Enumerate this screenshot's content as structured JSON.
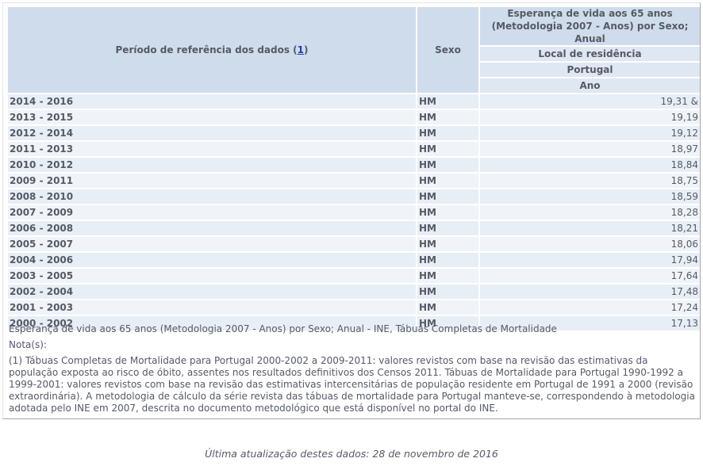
{
  "table": {
    "header": {
      "period_label": "Período de referência dos dados (",
      "period_note_ref": "1",
      "period_label_close": ")",
      "sexo_label": "Sexo",
      "indicator_line1": "Esperança de vida aos 65 anos",
      "indicator_line2": "(Metodologia 2007 - Anos) por Sexo; Anual",
      "local_label": "Local de residência",
      "local_value": "Portugal",
      "ano_label": "Ano"
    },
    "rows": [
      {
        "period": "2014 - 2016",
        "sexo": "HM",
        "value": "19,31 &"
      },
      {
        "period": "2013 - 2015",
        "sexo": "HM",
        "value": "19,19"
      },
      {
        "period": "2012 - 2014",
        "sexo": "HM",
        "value": "19,12"
      },
      {
        "period": "2011 - 2013",
        "sexo": "HM",
        "value": "18,97"
      },
      {
        "period": "2010 - 2012",
        "sexo": "HM",
        "value": "18,84"
      },
      {
        "period": "2009 - 2011",
        "sexo": "HM",
        "value": "18,75"
      },
      {
        "period": "2008 - 2010",
        "sexo": "HM",
        "value": "18,59"
      },
      {
        "period": "2007 - 2009",
        "sexo": "HM",
        "value": "18,28"
      },
      {
        "period": "2006 - 2008",
        "sexo": "HM",
        "value": "18,21"
      },
      {
        "period": "2005 - 2007",
        "sexo": "HM",
        "value": "18,06"
      },
      {
        "period": "2004 - 2006",
        "sexo": "HM",
        "value": "17,94"
      },
      {
        "period": "2003 - 2005",
        "sexo": "HM",
        "value": "17,64"
      },
      {
        "period": "2002 - 2004",
        "sexo": "HM",
        "value": "17,48"
      },
      {
        "period": "2001 - 2003",
        "sexo": "HM",
        "value": "17,24"
      },
      {
        "period": "2000 - 2002",
        "sexo": "HM",
        "value": "17,13"
      }
    ]
  },
  "source": "Esperança de vida aos 65 anos (Metodologia 2007 - Anos) por Sexo; Anual - INE, Tábuas Completas de Mortalidade",
  "notes": {
    "title": "Nota(s):",
    "text": "(1) Tábuas Completas de Mortalidade para Portugal 2000-2002 a 2009-2011: valores revistos com base na revisão das estimativas da população exposta ao risco de óbito, assentes nos resultados definitivos dos Censos 2011. Tábuas de Mortalidade para Portugal 1990-1992 a 1999-2001: valores revistos com base na revisão das estimativas intercensitárias de população residente em Portugal de 1991 a 2000 (revisão extraordinária). A metodologia de cálculo da série revista das tábuas de mortalidade para Portugal manteve-se, correspondendo à metodologia adotada pelo INE em 2007, descrita no documento metodológico que está disponível no portal do INE."
  },
  "footer": {
    "last_updated": "Última atualização destes dados: 28 de novembro de 2016"
  },
  "colors": {
    "header_bg": "#cfdcec",
    "subheader_bg": "#dfe7f2",
    "row_odd_bg": "#e8eef6",
    "row_even_bg": "#f0f4f9",
    "text": "#555a66",
    "link": "#1a3fb5"
  }
}
